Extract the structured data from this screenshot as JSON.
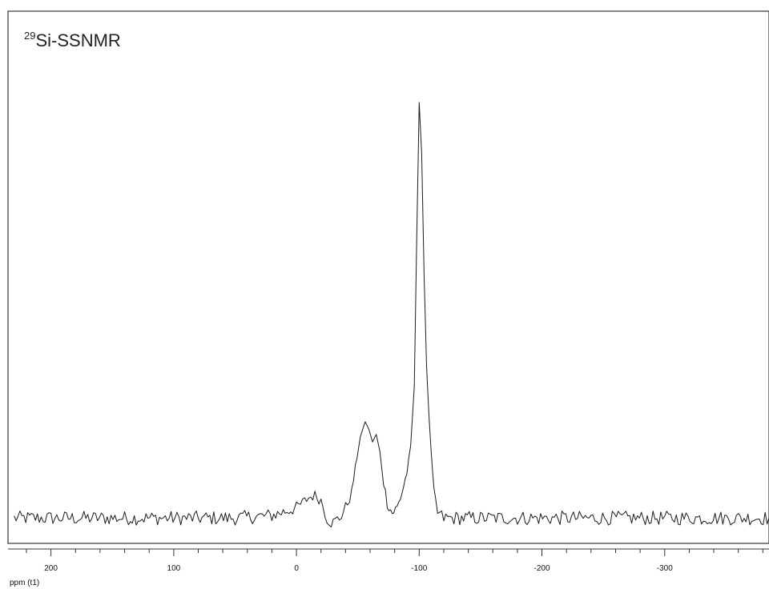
{
  "chart_data": {
    "type": "line",
    "title": {
      "superscript": "29",
      "text": "Si-SSNMR"
    },
    "xlabel": "ppm (t1)",
    "ylabel": "",
    "x_direction": "reversed",
    "xlim": [
      235,
      -385
    ],
    "ylim": [
      -0.05,
      1.0
    ],
    "grid": false,
    "legend": "none",
    "line_color": "#1a1a1a",
    "major_ticks": [
      200,
      100,
      0,
      -100,
      -200,
      -300
    ],
    "tick_labels": [
      "200",
      "100",
      "0",
      "-100",
      "-200",
      "-300"
    ],
    "minor_tick_step": 20,
    "series": [
      {
        "x": [
          230,
          200,
          170,
          140,
          110,
          80,
          50,
          20,
          0,
          -5,
          -10,
          -15,
          -20,
          -25,
          -30,
          -35,
          -40,
          -45,
          -48,
          -52,
          -56,
          -59,
          -62,
          -65,
          -68,
          -71,
          -74,
          -78,
          -82,
          -86,
          -90,
          -93,
          -96,
          -98,
          -100,
          -102,
          -104,
          -106,
          -108,
          -110,
          -112,
          -115,
          -120,
          -130,
          -150,
          -180,
          -210,
          -240,
          -270,
          -300,
          -330,
          -360,
          -385
        ],
        "y": [
          0.0,
          0.0,
          0.0,
          0.0,
          0.0,
          0.0,
          0.0,
          0.005,
          0.02,
          0.03,
          0.04,
          0.045,
          0.035,
          0.0,
          -0.01,
          0.0,
          0.02,
          0.05,
          0.1,
          0.16,
          0.19,
          0.175,
          0.15,
          0.165,
          0.13,
          0.07,
          0.03,
          0.01,
          0.02,
          0.05,
          0.09,
          0.14,
          0.26,
          0.55,
          0.82,
          0.72,
          0.48,
          0.3,
          0.2,
          0.12,
          0.05,
          0.01,
          0.0,
          0.0,
          0.0,
          0.0,
          0.0,
          0.0,
          0.0,
          0.0,
          0.0,
          0.0,
          0.0
        ]
      }
    ]
  }
}
